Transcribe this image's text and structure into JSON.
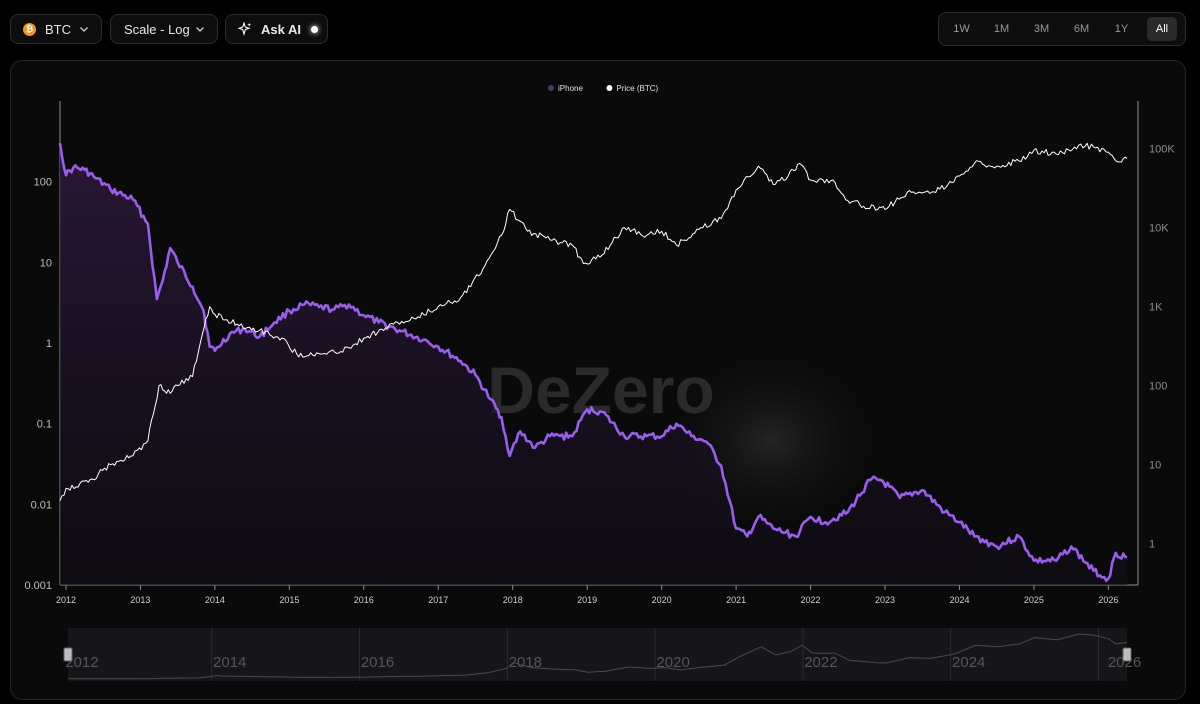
{
  "toolbar": {
    "asset": {
      "label": "BTC",
      "icon": "bitcoin-icon"
    },
    "scale": {
      "label": "Scale - Log"
    },
    "ask_ai": {
      "label": "Ask AI",
      "icon": "sparkle-icon"
    },
    "ranges": [
      {
        "label": "1W",
        "active": false
      },
      {
        "label": "1M",
        "active": false
      },
      {
        "label": "3M",
        "active": false
      },
      {
        "label": "6M",
        "active": false
      },
      {
        "label": "1Y",
        "active": false
      },
      {
        "label": "All",
        "active": true
      }
    ]
  },
  "watermark": "DeZero",
  "chart_data": {
    "type": "line",
    "legend": [
      {
        "name": "iPhone",
        "color": "#4a3a5c"
      },
      {
        "name": "Price (BTC)",
        "color": "#ffffff"
      }
    ],
    "legend_placement": "top-center",
    "x_tick_labels": [
      "2012",
      "2013",
      "2014",
      "2015",
      "2016",
      "2017",
      "2018",
      "2019",
      "2020",
      "2021",
      "2022",
      "2023",
      "2024",
      "2025",
      "2026"
    ],
    "left_axis": {
      "scale": "log",
      "range": [
        0.001,
        1000
      ],
      "tick_labels": [
        "0.001",
        "0.01",
        "0.1",
        "1",
        "10",
        "100"
      ],
      "ticks": [
        0.001,
        0.01,
        0.1,
        1,
        10,
        100
      ]
    },
    "right_axis": {
      "scale": "log",
      "range": [
        0.3,
        400000
      ],
      "tick_labels": [
        "1",
        "10",
        "100",
        "1K",
        "10K",
        "100K"
      ],
      "ticks": [
        1,
        10,
        100,
        1000,
        10000,
        100000
      ]
    },
    "grid": false,
    "series": [
      {
        "name": "iPhone",
        "axis": "left",
        "color": "#9b5cf0",
        "fill": true,
        "x": [
          2011.92,
          2012.0,
          2012.1,
          2012.25,
          2012.4,
          2012.6,
          2012.9,
          2013.1,
          2013.22,
          2013.3,
          2013.4,
          2013.5,
          2013.7,
          2013.85,
          2013.93,
          2014.0,
          2014.2,
          2014.4,
          2014.6,
          2014.8,
          2015.0,
          2015.2,
          2015.4,
          2015.6,
          2015.8,
          2016.0,
          2016.2,
          2016.5,
          2016.8,
          2017.0,
          2017.3,
          2017.5,
          2017.7,
          2017.85,
          2017.96,
          2018.1,
          2018.3,
          2018.5,
          2018.8,
          2019.0,
          2019.2,
          2019.5,
          2019.8,
          2020.0,
          2020.2,
          2020.4,
          2020.6,
          2020.8,
          2021.0,
          2021.15,
          2021.3,
          2021.5,
          2021.8,
          2022.0,
          2022.2,
          2022.5,
          2022.8,
          2022.95,
          2023.2,
          2023.5,
          2023.8,
          2024.0,
          2024.2,
          2024.5,
          2024.8,
          2025.0,
          2025.3,
          2025.5,
          2025.8,
          2026.0,
          2026.1,
          2026.25
        ],
        "y": [
          300,
          120,
          150,
          140,
          110,
          80,
          60,
          30,
          3.5,
          6,
          15,
          10,
          5,
          2.5,
          0.9,
          0.8,
          1.3,
          1.5,
          1.2,
          1.8,
          2.5,
          3,
          2.8,
          2.6,
          3,
          2.2,
          1.8,
          1.4,
          1.1,
          0.9,
          0.6,
          0.4,
          0.2,
          0.12,
          0.04,
          0.08,
          0.05,
          0.07,
          0.07,
          0.15,
          0.14,
          0.07,
          0.07,
          0.07,
          0.1,
          0.07,
          0.06,
          0.03,
          0.005,
          0.004,
          0.007,
          0.005,
          0.004,
          0.007,
          0.006,
          0.008,
          0.02,
          0.02,
          0.012,
          0.015,
          0.008,
          0.006,
          0.004,
          0.003,
          0.004,
          0.002,
          0.002,
          0.003,
          0.0015,
          0.0012,
          0.0025,
          0.0022
        ]
      },
      {
        "name": "Price (BTC)",
        "axis": "right",
        "color": "#ffffff",
        "x": [
          2011.92,
          2012.0,
          2012.3,
          2012.6,
          2012.9,
          2013.1,
          2013.25,
          2013.35,
          2013.5,
          2013.7,
          2013.88,
          2013.93,
          2014.0,
          2014.3,
          2014.6,
          2014.9,
          2015.1,
          2015.5,
          2015.8,
          2016.0,
          2016.4,
          2016.7,
          2017.0,
          2017.3,
          2017.6,
          2017.85,
          2017.96,
          2018.2,
          2018.5,
          2018.8,
          2018.95,
          2019.2,
          2019.5,
          2019.8,
          2020.0,
          2020.2,
          2020.5,
          2020.8,
          2021.0,
          2021.3,
          2021.5,
          2021.7,
          2021.85,
          2022.0,
          2022.3,
          2022.5,
          2022.9,
          2023.0,
          2023.3,
          2023.6,
          2023.9,
          2024.0,
          2024.2,
          2024.5,
          2024.8,
          2025.0,
          2025.3,
          2025.6,
          2025.8,
          2026.0,
          2026.1,
          2026.25
        ],
        "y": [
          3.5,
          5,
          6,
          10,
          13,
          20,
          100,
          80,
          100,
          130,
          700,
          1000,
          800,
          600,
          500,
          400,
          250,
          250,
          300,
          400,
          600,
          700,
          1000,
          1300,
          3000,
          8000,
          17000,
          9000,
          7000,
          6000,
          3500,
          4500,
          10000,
          8000,
          9000,
          6000,
          9500,
          13000,
          30000,
          60000,
          35000,
          45000,
          65000,
          40000,
          40000,
          22000,
          17000,
          17000,
          28000,
          27000,
          37000,
          45000,
          65000,
          60000,
          70000,
          95000,
          85000,
          110000,
          105000,
          90000,
          70000,
          75000
        ]
      }
    ],
    "navigator": {
      "x_tick_labels": [
        "2012",
        "2014",
        "2016",
        "2018",
        "2020",
        "2022",
        "2024",
        "2026"
      ],
      "x_ticks": [
        2012,
        2014,
        2016,
        2018,
        2020,
        2022,
        2024,
        2026
      ],
      "selection": [
        2011.92,
        2026.25
      ]
    }
  }
}
